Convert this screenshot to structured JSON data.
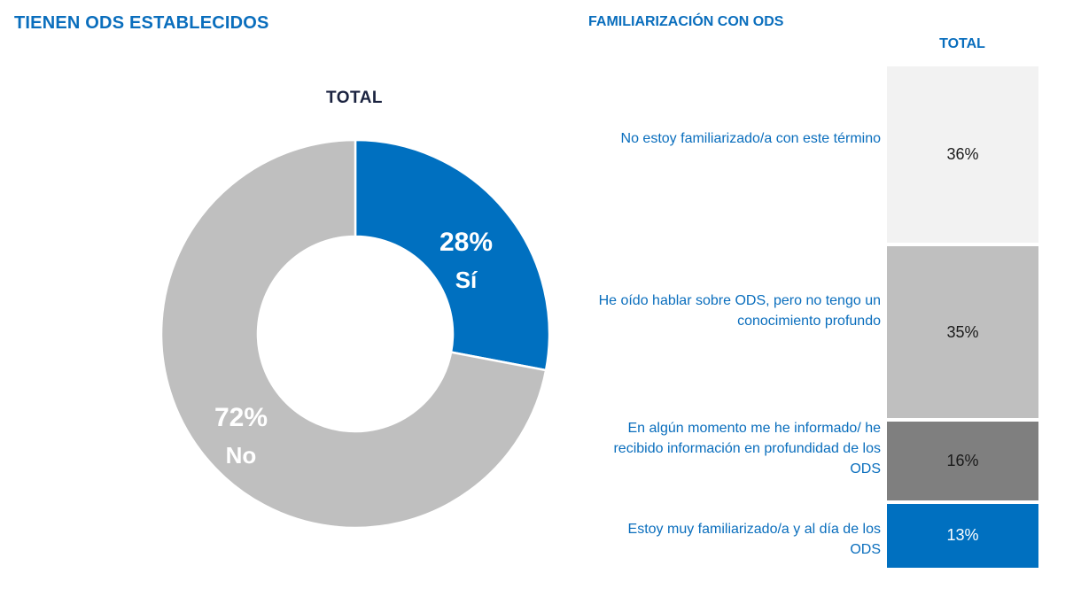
{
  "left_panel": {
    "title": "TIENEN ODS ESTABLECIDOS",
    "subtitle": "TOTAL"
  },
  "right_panel": {
    "title": "FAMILIARIZACIÓN CON ODS",
    "column_header": "TOTAL"
  },
  "colors": {
    "brand_blue": "#0070c0",
    "title_blue": "#0a6ebd",
    "light_gray": "#f2f2f2",
    "mid_gray": "#bfbfbf",
    "dark_gray": "#7f7f7f"
  },
  "chart_data": [
    {
      "type": "pie",
      "title": "TIENEN ODS ESTABLECIDOS",
      "subtitle": "TOTAL",
      "donut": true,
      "slices": [
        {
          "label": "Sí",
          "value": 28,
          "display": "28%",
          "color": "#0070c0"
        },
        {
          "label": "No",
          "value": 72,
          "display": "72%",
          "color": "#bfbfbf"
        }
      ]
    },
    {
      "type": "bar",
      "stacked": true,
      "orientation": "vertical",
      "title": "FAMILIARIZACIÓN CON ODS",
      "categories": [
        "TOTAL"
      ],
      "series": [
        {
          "name": "No estoy familiarizado/a con este término",
          "values": [
            36
          ],
          "display": "36%",
          "color": "#f2f2f2",
          "text_color": "#1a1a1a"
        },
        {
          "name": "He oído hablar sobre ODS, pero no tengo un conocimiento profundo",
          "values": [
            35
          ],
          "display": "35%",
          "color": "#bfbfbf",
          "text_color": "#1a1a1a"
        },
        {
          "name": "En algún momento me he informado/ he recibido información en profundidad de los ODS",
          "values": [
            16
          ],
          "display": "16%",
          "color": "#7f7f7f",
          "text_color": "#1a1a1a"
        },
        {
          "name": "Estoy muy familiarizado/a y al día de los ODS",
          "values": [
            13
          ],
          "display": "13%",
          "color": "#0070c0",
          "text_color": "#ffffff"
        }
      ],
      "ylim": [
        0,
        100
      ]
    }
  ]
}
